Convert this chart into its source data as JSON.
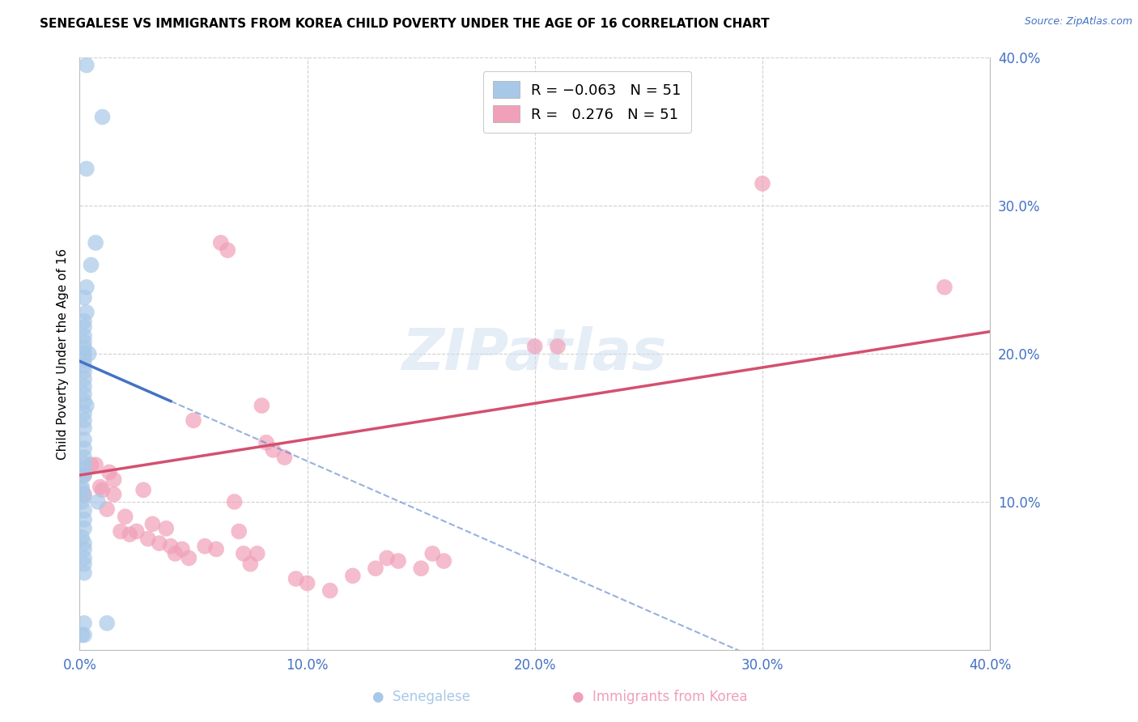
{
  "title": "SENEGALESE VS IMMIGRANTS FROM KOREA CHILD POVERTY UNDER THE AGE OF 16 CORRELATION CHART",
  "source": "Source: ZipAtlas.com",
  "ylabel": "Child Poverty Under the Age of 16",
  "xlim": [
    0.0,
    0.4
  ],
  "ylim": [
    0.0,
    0.4
  ],
  "color_senegalese": "#a8c8e8",
  "color_korea": "#f0a0b8",
  "color_line_senegalese": "#4472c4",
  "color_line_korea": "#d45070",
  "color_axis_text": "#4472c4",
  "background_color": "#ffffff",
  "watermark": "ZIPatlas",
  "senegalese_x": [
    0.003,
    0.01,
    0.003,
    0.007,
    0.005,
    0.003,
    0.002,
    0.003,
    0.002,
    0.002,
    0.002,
    0.002,
    0.002,
    0.002,
    0.002,
    0.002,
    0.002,
    0.002,
    0.002,
    0.002,
    0.002,
    0.003,
    0.004,
    0.002,
    0.002,
    0.002,
    0.002,
    0.002,
    0.002,
    0.002,
    0.002,
    0.002,
    0.001,
    0.001,
    0.001,
    0.002,
    0.001,
    0.008,
    0.002,
    0.002,
    0.002,
    0.001,
    0.002,
    0.002,
    0.002,
    0.002,
    0.002,
    0.002,
    0.012,
    0.002,
    0.001
  ],
  "senegalese_y": [
    0.395,
    0.36,
    0.325,
    0.275,
    0.26,
    0.245,
    0.238,
    0.228,
    0.222,
    0.218,
    0.212,
    0.208,
    0.204,
    0.2,
    0.196,
    0.192,
    0.188,
    0.183,
    0.178,
    0.173,
    0.168,
    0.165,
    0.2,
    0.16,
    0.155,
    0.15,
    0.142,
    0.136,
    0.13,
    0.126,
    0.122,
    0.118,
    0.118,
    0.11,
    0.108,
    0.104,
    0.1,
    0.1,
    0.094,
    0.088,
    0.082,
    0.076,
    0.072,
    0.068,
    0.062,
    0.058,
    0.052,
    0.018,
    0.018,
    0.01,
    0.01
  ],
  "korea_x": [
    0.002,
    0.002,
    0.005,
    0.007,
    0.009,
    0.01,
    0.012,
    0.013,
    0.015,
    0.015,
    0.018,
    0.02,
    0.022,
    0.025,
    0.028,
    0.03,
    0.032,
    0.035,
    0.038,
    0.04,
    0.042,
    0.045,
    0.048,
    0.05,
    0.055,
    0.06,
    0.062,
    0.065,
    0.068,
    0.07,
    0.072,
    0.075,
    0.078,
    0.08,
    0.082,
    0.085,
    0.09,
    0.095,
    0.1,
    0.11,
    0.12,
    0.13,
    0.135,
    0.14,
    0.15,
    0.155,
    0.16,
    0.2,
    0.21,
    0.38,
    0.3
  ],
  "korea_y": [
    0.118,
    0.105,
    0.125,
    0.125,
    0.11,
    0.108,
    0.095,
    0.12,
    0.105,
    0.115,
    0.08,
    0.09,
    0.078,
    0.08,
    0.108,
    0.075,
    0.085,
    0.072,
    0.082,
    0.07,
    0.065,
    0.068,
    0.062,
    0.155,
    0.07,
    0.068,
    0.275,
    0.27,
    0.1,
    0.08,
    0.065,
    0.058,
    0.065,
    0.165,
    0.14,
    0.135,
    0.13,
    0.048,
    0.045,
    0.04,
    0.05,
    0.055,
    0.062,
    0.06,
    0.055,
    0.065,
    0.06,
    0.205,
    0.205,
    0.245,
    0.315
  ],
  "sen_line_x": [
    0.0,
    0.04
  ],
  "sen_line_y_start": 0.195,
  "sen_line_y_end": 0.168,
  "kor_line_x": [
    0.0,
    0.4
  ],
  "kor_line_y_start": 0.118,
  "kor_line_y_end": 0.215,
  "dash_line_x": [
    0.0,
    0.4
  ],
  "dash_line_y_start": 0.21,
  "dash_line_y_end": 0.0
}
